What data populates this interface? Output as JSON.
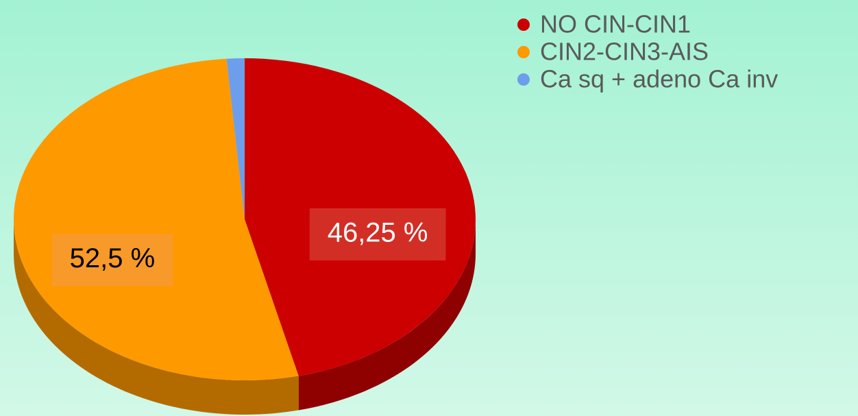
{
  "chart_data": {
    "type": "pie3d",
    "categories": [
      "NO CIN-CIN1",
      "CIN2-CIN3-AIS",
      "Ca sq + adeno Ca inv"
    ],
    "values": [
      46.25,
      52.5,
      1.25
    ],
    "value_labels": [
      "46,25 %",
      "52,5 %",
      null
    ],
    "colors": [
      "#cc0000",
      "#ff9900",
      "#6d9eeb"
    ],
    "legend": "top-right"
  }
}
